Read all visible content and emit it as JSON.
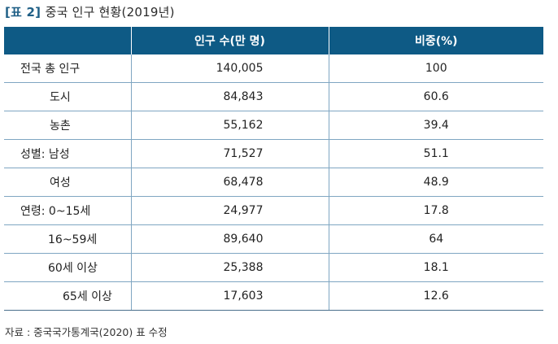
{
  "title": {
    "label": "[표 2]",
    "text": "중국 인구 현황(2019년)"
  },
  "table": {
    "headers": [
      "",
      "인구 수(만 명)",
      "비중(%)"
    ],
    "rows": [
      {
        "label": "전국 총 인구",
        "population": "140,005",
        "share": "100"
      },
      {
        "label": "도시",
        "population": "84,843",
        "share": "60.6"
      },
      {
        "label": "농촌",
        "population": "55,162",
        "share": "39.4"
      },
      {
        "label": "성별: 남성",
        "population": "71,527",
        "share": "51.1"
      },
      {
        "label": "여성",
        "population": "68,478",
        "share": "48.9"
      },
      {
        "label": "연령: 0~15세",
        "population": "24,977",
        "share": "17.8"
      },
      {
        "label": "16~59세",
        "population": "89,640",
        "share": "64"
      },
      {
        "label": "60세 이상",
        "population": "25,388",
        "share": "18.1"
      },
      {
        "label": "65세 이상",
        "population": "17,603",
        "share": "12.6"
      }
    ]
  },
  "source": "자료 : 중국국가통계국(2020) 표 수정",
  "colors": {
    "header_bg": "#0e5a85",
    "header_text": "#ffffff",
    "row_rule": "#7fa6c2"
  }
}
